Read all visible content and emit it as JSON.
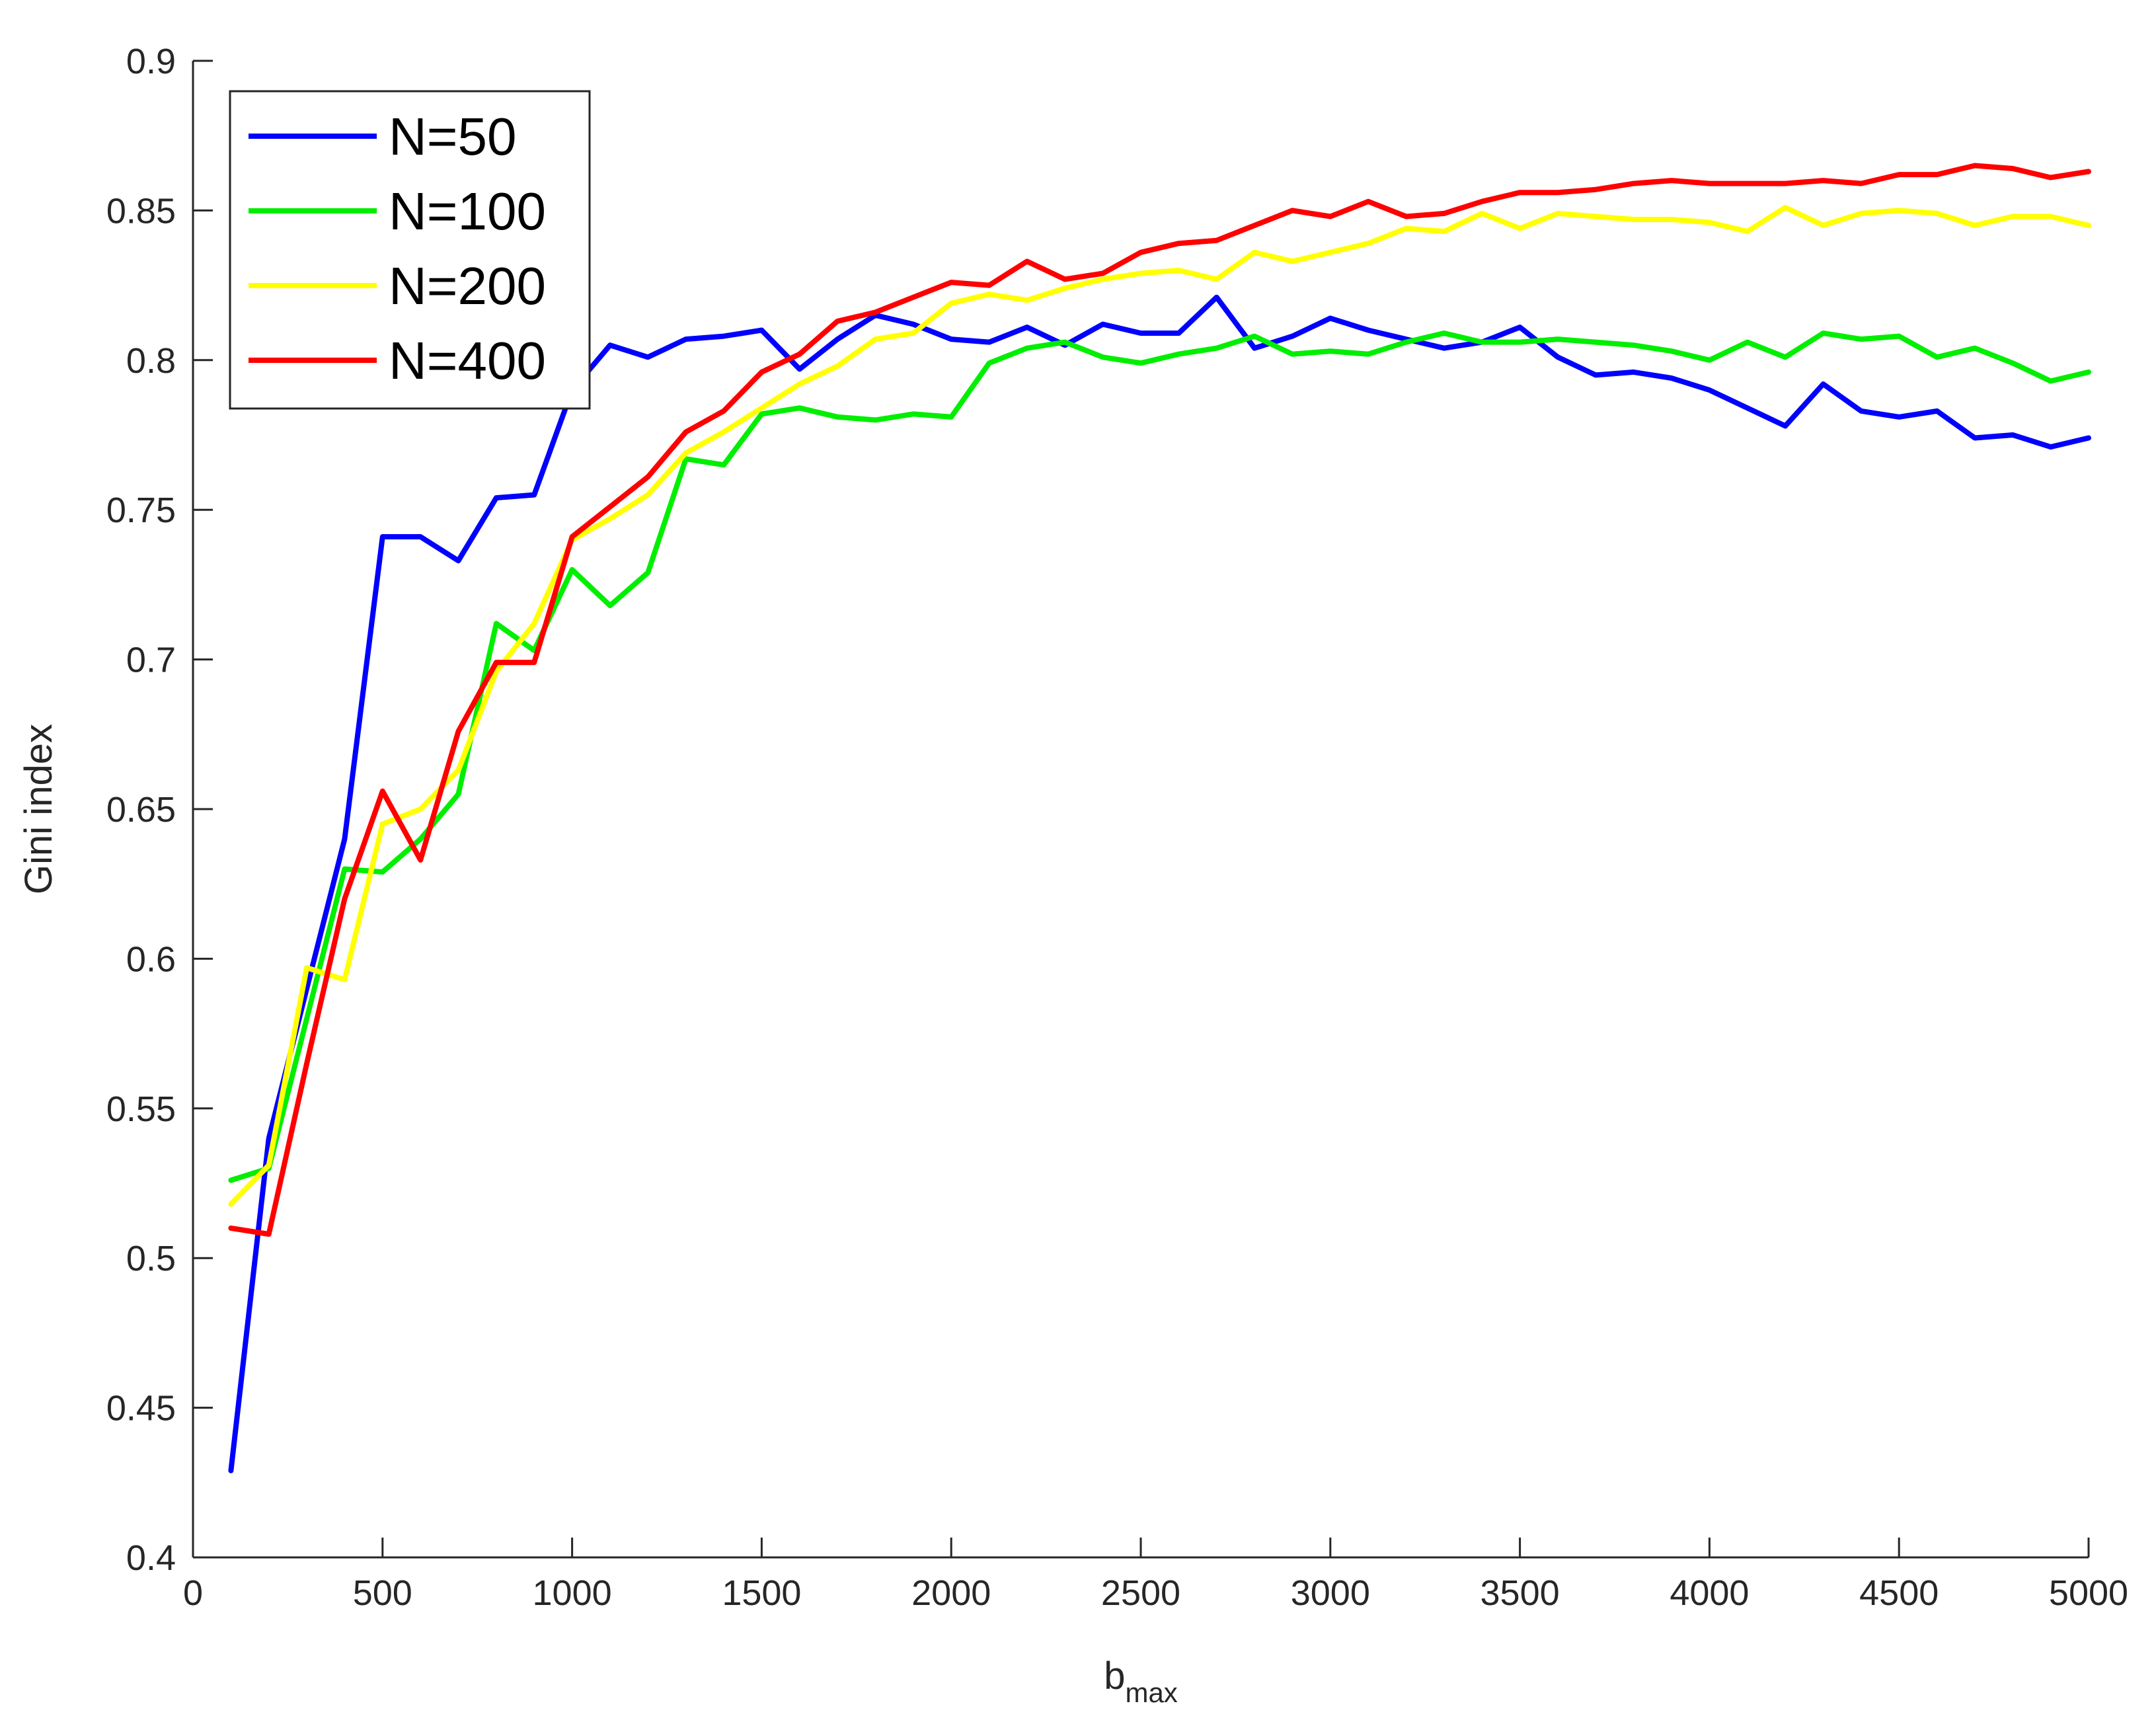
{
  "chart_data": {
    "type": "line",
    "xlabel": "b",
    "xlabel_sub": "max",
    "ylabel": "Gini index",
    "xlim": [
      0,
      5000
    ],
    "ylim": [
      0.4,
      0.9
    ],
    "xticks": [
      0,
      500,
      1000,
      1500,
      2000,
      2500,
      3000,
      3500,
      4000,
      4500,
      5000
    ],
    "yticks": [
      0.4,
      0.45,
      0.5,
      0.55,
      0.6,
      0.65,
      0.7,
      0.75,
      0.8,
      0.85,
      0.9
    ],
    "xtick_labels": [
      "0",
      "500",
      "1000",
      "1500",
      "2000",
      "2500",
      "3000",
      "3500",
      "4000",
      "4500",
      "5000"
    ],
    "ytick_labels": [
      "0.4",
      "0.45",
      "0.5",
      "0.55",
      "0.6",
      "0.65",
      "0.7",
      "0.75",
      "0.8",
      "0.85",
      "0.9"
    ],
    "grid": false,
    "legend_position": "top-left",
    "x": [
      100,
      200,
      300,
      400,
      500,
      600,
      700,
      800,
      900,
      1000,
      1100,
      1200,
      1300,
      1400,
      1500,
      1600,
      1700,
      1800,
      1900,
      2000,
      2100,
      2200,
      2300,
      2400,
      2500,
      2600,
      2700,
      2800,
      2900,
      3000,
      3100,
      3200,
      3300,
      3400,
      3500,
      3600,
      3700,
      3800,
      3900,
      4000,
      4100,
      4200,
      4300,
      4400,
      4500,
      4600,
      4700,
      4800,
      4900,
      5000
    ],
    "series": [
      {
        "name": "N=50",
        "color": "#0000ff",
        "values": [
          0.429,
          0.54,
          0.59,
          0.64,
          0.741,
          0.741,
          0.733,
          0.754,
          0.755,
          0.79,
          0.805,
          0.801,
          0.807,
          0.808,
          0.81,
          0.797,
          0.807,
          0.815,
          0.812,
          0.807,
          0.806,
          0.811,
          0.805,
          0.812,
          0.809,
          0.809,
          0.821,
          0.804,
          0.808,
          0.814,
          0.81,
          0.807,
          0.804,
          0.806,
          0.811,
          0.801,
          0.795,
          0.796,
          0.794,
          0.79,
          0.784,
          0.778,
          0.792,
          0.783,
          0.781,
          0.783,
          0.774,
          0.775,
          0.771,
          0.774
        ]
      },
      {
        "name": "N=100",
        "color": "#00ee00",
        "values": [
          0.526,
          0.53,
          0.58,
          0.63,
          0.629,
          0.64,
          0.655,
          0.712,
          0.703,
          0.73,
          0.718,
          0.729,
          0.767,
          0.765,
          0.782,
          0.784,
          0.781,
          0.78,
          0.782,
          0.781,
          0.799,
          0.804,
          0.806,
          0.801,
          0.799,
          0.802,
          0.804,
          0.808,
          0.802,
          0.803,
          0.802,
          0.806,
          0.809,
          0.806,
          0.806,
          0.807,
          0.806,
          0.805,
          0.803,
          0.8,
          0.806,
          0.801,
          0.809,
          0.807,
          0.808,
          0.801,
          0.804,
          0.799,
          0.793,
          0.796
        ]
      },
      {
        "name": "N=200",
        "color": "#ffff00",
        "values": [
          0.518,
          0.531,
          0.597,
          0.593,
          0.645,
          0.65,
          0.663,
          0.696,
          0.712,
          0.74,
          0.747,
          0.755,
          0.769,
          0.776,
          0.784,
          0.792,
          0.798,
          0.807,
          0.809,
          0.819,
          0.822,
          0.82,
          0.824,
          0.827,
          0.829,
          0.83,
          0.827,
          0.836,
          0.833,
          0.836,
          0.839,
          0.844,
          0.843,
          0.849,
          0.844,
          0.849,
          0.848,
          0.847,
          0.847,
          0.846,
          0.843,
          0.851,
          0.845,
          0.849,
          0.85,
          0.849,
          0.845,
          0.848,
          0.848,
          0.845
        ]
      },
      {
        "name": "N=400",
        "color": "#ff0000",
        "values": [
          0.51,
          0.508,
          0.565,
          0.62,
          0.656,
          0.633,
          0.676,
          0.699,
          0.699,
          0.741,
          0.751,
          0.761,
          0.776,
          0.783,
          0.796,
          0.802,
          0.813,
          0.816,
          0.821,
          0.826,
          0.825,
          0.833,
          0.827,
          0.829,
          0.836,
          0.839,
          0.84,
          0.845,
          0.85,
          0.848,
          0.853,
          0.848,
          0.849,
          0.853,
          0.856,
          0.856,
          0.857,
          0.859,
          0.86,
          0.859,
          0.859,
          0.859,
          0.86,
          0.859,
          0.862,
          0.862,
          0.865,
          0.864,
          0.861,
          0.863
        ]
      }
    ]
  }
}
